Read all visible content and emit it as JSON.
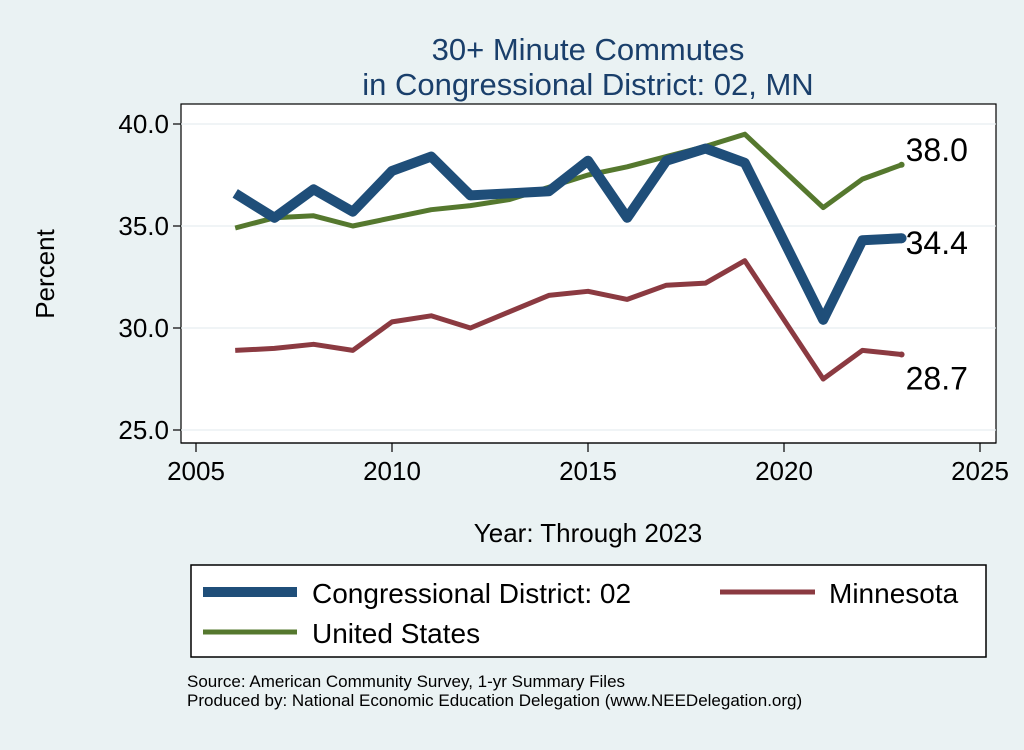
{
  "chart_data": {
    "type": "line",
    "title": [
      "30+ Minute Commutes",
      "in Congressional District:  02, MN"
    ],
    "xlabel": "Year: Through 2023",
    "ylabel": "Percent",
    "xlim": [
      2005,
      2025
    ],
    "ylim": [
      25,
      40
    ],
    "xticks": [
      "2005",
      "2010",
      "2015",
      "2020",
      "2025"
    ],
    "yticks": [
      "25.0",
      "30.0",
      "35.0",
      "40.0"
    ],
    "grid": "horizontal",
    "legend_position": "bottom",
    "x": [
      2006,
      2007,
      2008,
      2009,
      2010,
      2011,
      2012,
      2013,
      2014,
      2015,
      2016,
      2017,
      2018,
      2019,
      2021,
      2022,
      2023
    ],
    "series": [
      {
        "name": "Congressional District:  02",
        "color": "#1f4e79",
        "values": [
          36.6,
          35.4,
          36.8,
          35.7,
          37.7,
          38.4,
          36.5,
          36.6,
          36.7,
          38.2,
          35.4,
          38.2,
          38.8,
          38.1,
          30.4,
          34.3,
          34.4
        ],
        "end_label": "34.4"
      },
      {
        "name": "Minnesota",
        "color": "#8b3a41",
        "values": [
          28.9,
          29.0,
          29.2,
          28.9,
          30.3,
          30.6,
          30.0,
          30.8,
          31.6,
          31.8,
          31.4,
          32.1,
          32.2,
          33.3,
          27.5,
          28.9,
          28.7
        ],
        "end_label": "28.7"
      },
      {
        "name": "United States",
        "color": "#55782e",
        "values": [
          34.9,
          35.4,
          35.5,
          35.0,
          35.4,
          35.8,
          36.0,
          36.3,
          36.9,
          37.5,
          37.9,
          38.4,
          38.9,
          39.5,
          35.9,
          37.3,
          38.0
        ],
        "end_label": "38.0"
      }
    ],
    "legend": {
      "items": [
        "Congressional District:  02",
        "Minnesota",
        "United States"
      ]
    }
  },
  "source": {
    "line1": "Source: American Community Survey, 1-yr Summary Files",
    "line2": "Produced by: National Economic Education Delegation (www.NEEDelegation.org)"
  }
}
